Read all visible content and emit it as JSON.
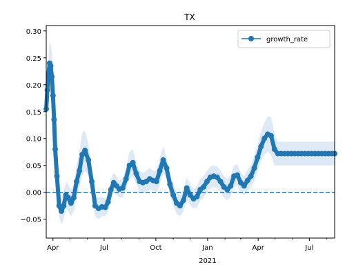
{
  "chart_data": {
    "type": "line",
    "title": "TX",
    "xlabel": "",
    "ylabel": "",
    "x_start": "2020-03-20",
    "x_end": "2021-08-15",
    "ylim": [
      -0.085,
      0.31
    ],
    "yticks": [
      -0.05,
      0.0,
      0.05,
      0.1,
      0.15,
      0.2,
      0.25,
      0.3
    ],
    "ytick_labels": [
      "−0.05",
      "0.00",
      "0.05",
      "0.10",
      "0.15",
      "0.20",
      "0.25",
      "0.30"
    ],
    "xtick_labels": [
      "Apr",
      "Jul",
      "Oct",
      "Jan",
      "Apr",
      "Jul"
    ],
    "xtick_dates": [
      "2020-04-01",
      "2020-07-01",
      "2020-10-01",
      "2021-01-01",
      "2021-04-01",
      "2021-07-01"
    ],
    "x_year_label": "2021",
    "x_year_label_date": "2021-01-01",
    "minor_tick_dates": [
      "2020-05-01",
      "2020-06-01",
      "2020-08-01",
      "2020-09-01",
      "2020-11-01",
      "2020-12-01",
      "2021-02-01",
      "2021-03-01",
      "2021-05-01",
      "2021-06-01",
      "2021-08-01"
    ],
    "reference_line": 0.0,
    "grid": false,
    "legend_position": "upper right",
    "series": [
      {
        "name": "growth_rate",
        "color": "#1f77b4",
        "band_color": "#dde9f5",
        "x": [
          "2020-03-20",
          "2020-03-22",
          "2020-03-24",
          "2020-03-26",
          "2020-03-28",
          "2020-03-30",
          "2020-04-01",
          "2020-04-03",
          "2020-04-05",
          "2020-04-08",
          "2020-04-12",
          "2020-04-16",
          "2020-04-20",
          "2020-04-24",
          "2020-04-28",
          "2020-05-03",
          "2020-05-08",
          "2020-05-13",
          "2020-05-18",
          "2020-05-23",
          "2020-05-28",
          "2020-06-03",
          "2020-06-09",
          "2020-06-15",
          "2020-06-21",
          "2020-06-27",
          "2020-07-03",
          "2020-07-08",
          "2020-07-13",
          "2020-07-18",
          "2020-07-23",
          "2020-07-28",
          "2020-08-03",
          "2020-08-09",
          "2020-08-15",
          "2020-08-21",
          "2020-08-27",
          "2020-09-02",
          "2020-09-08",
          "2020-09-14",
          "2020-09-20",
          "2020-09-26",
          "2020-10-02",
          "2020-10-08",
          "2020-10-14",
          "2020-10-20",
          "2020-10-26",
          "2020-11-01",
          "2020-11-07",
          "2020-11-13",
          "2020-11-19",
          "2020-11-25",
          "2020-12-01",
          "2020-12-07",
          "2020-12-13",
          "2020-12-19",
          "2020-12-25",
          "2020-12-31",
          "2021-01-06",
          "2021-01-12",
          "2021-01-18",
          "2021-01-24",
          "2021-01-30",
          "2021-02-05",
          "2021-02-11",
          "2021-02-17",
          "2021-02-23",
          "2021-03-01",
          "2021-03-07",
          "2021-03-13",
          "2021-03-19",
          "2021-03-25",
          "2021-03-31",
          "2021-04-06",
          "2021-04-12",
          "2021-04-18",
          "2021-04-24",
          "2021-04-30",
          "2021-05-06",
          "2021-05-12",
          "2021-05-18",
          "2021-05-24",
          "2021-05-30",
          "2021-06-05",
          "2021-06-11",
          "2021-06-17",
          "2021-06-23",
          "2021-06-29",
          "2021-07-05",
          "2021-07-11",
          "2021-07-17",
          "2021-07-23",
          "2021-07-29",
          "2021-08-04",
          "2021-08-10",
          "2021-08-15"
        ],
        "values": [
          0.155,
          0.19,
          0.22,
          0.24,
          0.235,
          0.215,
          0.18,
          0.135,
          0.08,
          0.03,
          -0.025,
          -0.035,
          -0.025,
          -0.005,
          -0.01,
          -0.02,
          -0.01,
          0.02,
          0.04,
          0.07,
          0.078,
          0.06,
          0.02,
          -0.025,
          -0.03,
          -0.027,
          -0.028,
          -0.018,
          0.005,
          0.018,
          0.012,
          0.006,
          0.008,
          0.025,
          0.05,
          0.055,
          0.035,
          0.02,
          0.018,
          0.02,
          0.025,
          0.022,
          0.02,
          0.04,
          0.06,
          0.045,
          0.015,
          -0.005,
          -0.02,
          -0.025,
          -0.015,
          0.008,
          -0.005,
          -0.012,
          -0.008,
          0.005,
          0.01,
          0.02,
          0.028,
          0.03,
          0.028,
          0.02,
          0.01,
          0.005,
          0.012,
          0.03,
          0.032,
          0.018,
          0.012,
          0.022,
          0.03,
          0.045,
          0.065,
          0.085,
          0.1,
          0.108,
          0.105,
          0.08,
          0.072,
          0.072,
          0.072,
          0.072,
          0.072,
          0.072,
          0.072,
          0.072,
          0.072,
          0.072,
          0.072,
          0.072,
          0.072,
          0.072,
          0.072,
          0.072,
          0.072,
          0.072
        ],
        "lower": [
          0.14,
          0.165,
          0.19,
          0.2,
          0.19,
          0.17,
          0.14,
          0.1,
          0.055,
          0.008,
          -0.045,
          -0.06,
          -0.05,
          -0.03,
          -0.035,
          -0.045,
          -0.035,
          -0.01,
          0.01,
          0.03,
          0.04,
          0.03,
          -0.005,
          -0.045,
          -0.05,
          -0.045,
          -0.045,
          -0.035,
          -0.015,
          0.0,
          -0.005,
          -0.01,
          -0.01,
          0.005,
          0.025,
          0.03,
          0.015,
          0.0,
          0.0,
          0.0,
          0.005,
          0.004,
          0.0,
          0.015,
          0.035,
          0.025,
          -0.005,
          -0.025,
          -0.04,
          -0.045,
          -0.035,
          -0.012,
          -0.025,
          -0.03,
          -0.028,
          -0.015,
          -0.01,
          0.0,
          0.008,
          0.01,
          0.008,
          0.0,
          -0.01,
          -0.015,
          -0.008,
          0.01,
          0.012,
          0.0,
          -0.006,
          0.002,
          0.01,
          0.02,
          0.04,
          0.058,
          0.07,
          0.075,
          0.07,
          0.05,
          0.05,
          0.05,
          0.05,
          0.05,
          0.05,
          0.05,
          0.05,
          0.05,
          0.05,
          0.05,
          0.05,
          0.05,
          0.05,
          0.05,
          0.05,
          0.05,
          0.05,
          0.05
        ],
        "upper": [
          0.17,
          0.215,
          0.25,
          0.28,
          0.275,
          0.26,
          0.22,
          0.17,
          0.105,
          0.052,
          -0.005,
          -0.01,
          0.0,
          0.02,
          0.015,
          0.005,
          0.015,
          0.05,
          0.075,
          0.11,
          0.115,
          0.09,
          0.045,
          -0.005,
          -0.01,
          -0.009,
          -0.011,
          0.0,
          0.025,
          0.036,
          0.03,
          0.022,
          0.026,
          0.045,
          0.075,
          0.08,
          0.055,
          0.04,
          0.036,
          0.04,
          0.045,
          0.04,
          0.04,
          0.065,
          0.085,
          0.065,
          0.035,
          0.015,
          0.0,
          -0.005,
          0.005,
          0.028,
          0.015,
          0.006,
          0.012,
          0.025,
          0.03,
          0.04,
          0.048,
          0.05,
          0.048,
          0.04,
          0.03,
          0.025,
          0.032,
          0.05,
          0.052,
          0.036,
          0.03,
          0.042,
          0.05,
          0.07,
          0.09,
          0.112,
          0.13,
          0.141,
          0.14,
          0.11,
          0.094,
          0.094,
          0.094,
          0.094,
          0.094,
          0.094,
          0.094,
          0.094,
          0.094,
          0.094,
          0.094,
          0.094,
          0.094,
          0.094,
          0.094,
          0.094,
          0.094,
          0.094
        ]
      }
    ]
  }
}
